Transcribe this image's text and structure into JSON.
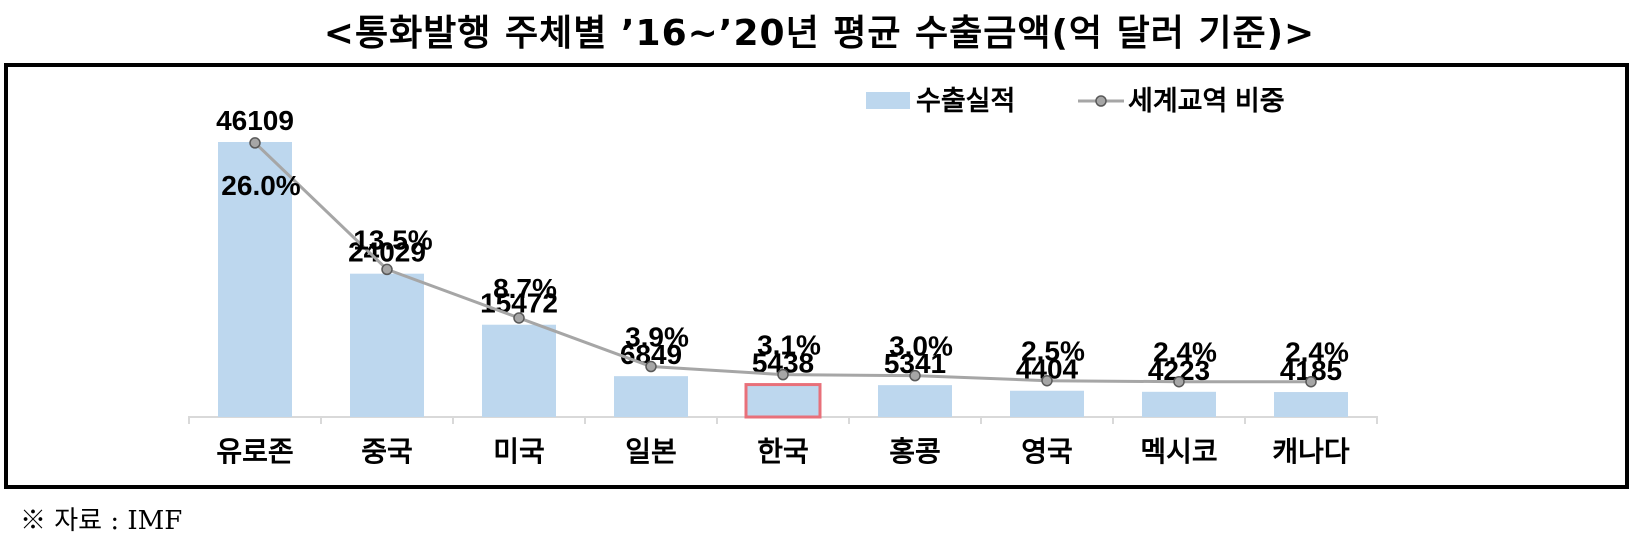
{
  "title": "<통화발행 주체별 ’16~’20년 평균 수출금액(억 달러 기준)>",
  "source_note": "※ 자료 : IMF",
  "colors": {
    "bar_fill": "#bdd7ee",
    "highlight_border": "#e8707a",
    "line": "#a6a6a6",
    "marker_fill": "#a6a6a6",
    "marker_stroke": "#595959",
    "text": "#000000"
  },
  "chart_data": {
    "type": "bar",
    "title": "<통화발행 주체별 ’16~’20년 평균 수출금액(억 달러 기준)>",
    "categories": [
      "유로존",
      "중국",
      "미국",
      "일본",
      "한국",
      "홍콩",
      "영국",
      "멕시코",
      "캐나다"
    ],
    "highlight_category": "한국",
    "bar_series": {
      "name": "수출실적",
      "values": [
        46109,
        24029,
        15472,
        6849,
        5438,
        5341,
        4404,
        4223,
        4185
      ]
    },
    "line_series": {
      "name": "세계교역 비중",
      "values": [
        26.0,
        13.5,
        8.7,
        3.9,
        3.1,
        3.0,
        2.5,
        2.4,
        2.4
      ],
      "labels": [
        "26.0%",
        "13.5%",
        "8.7%",
        "3.9%",
        "3.1%",
        "3.0%",
        "2.5%",
        "2.4%",
        "2.4%"
      ]
    },
    "legend": {
      "position": "top-right"
    },
    "grid": false
  }
}
